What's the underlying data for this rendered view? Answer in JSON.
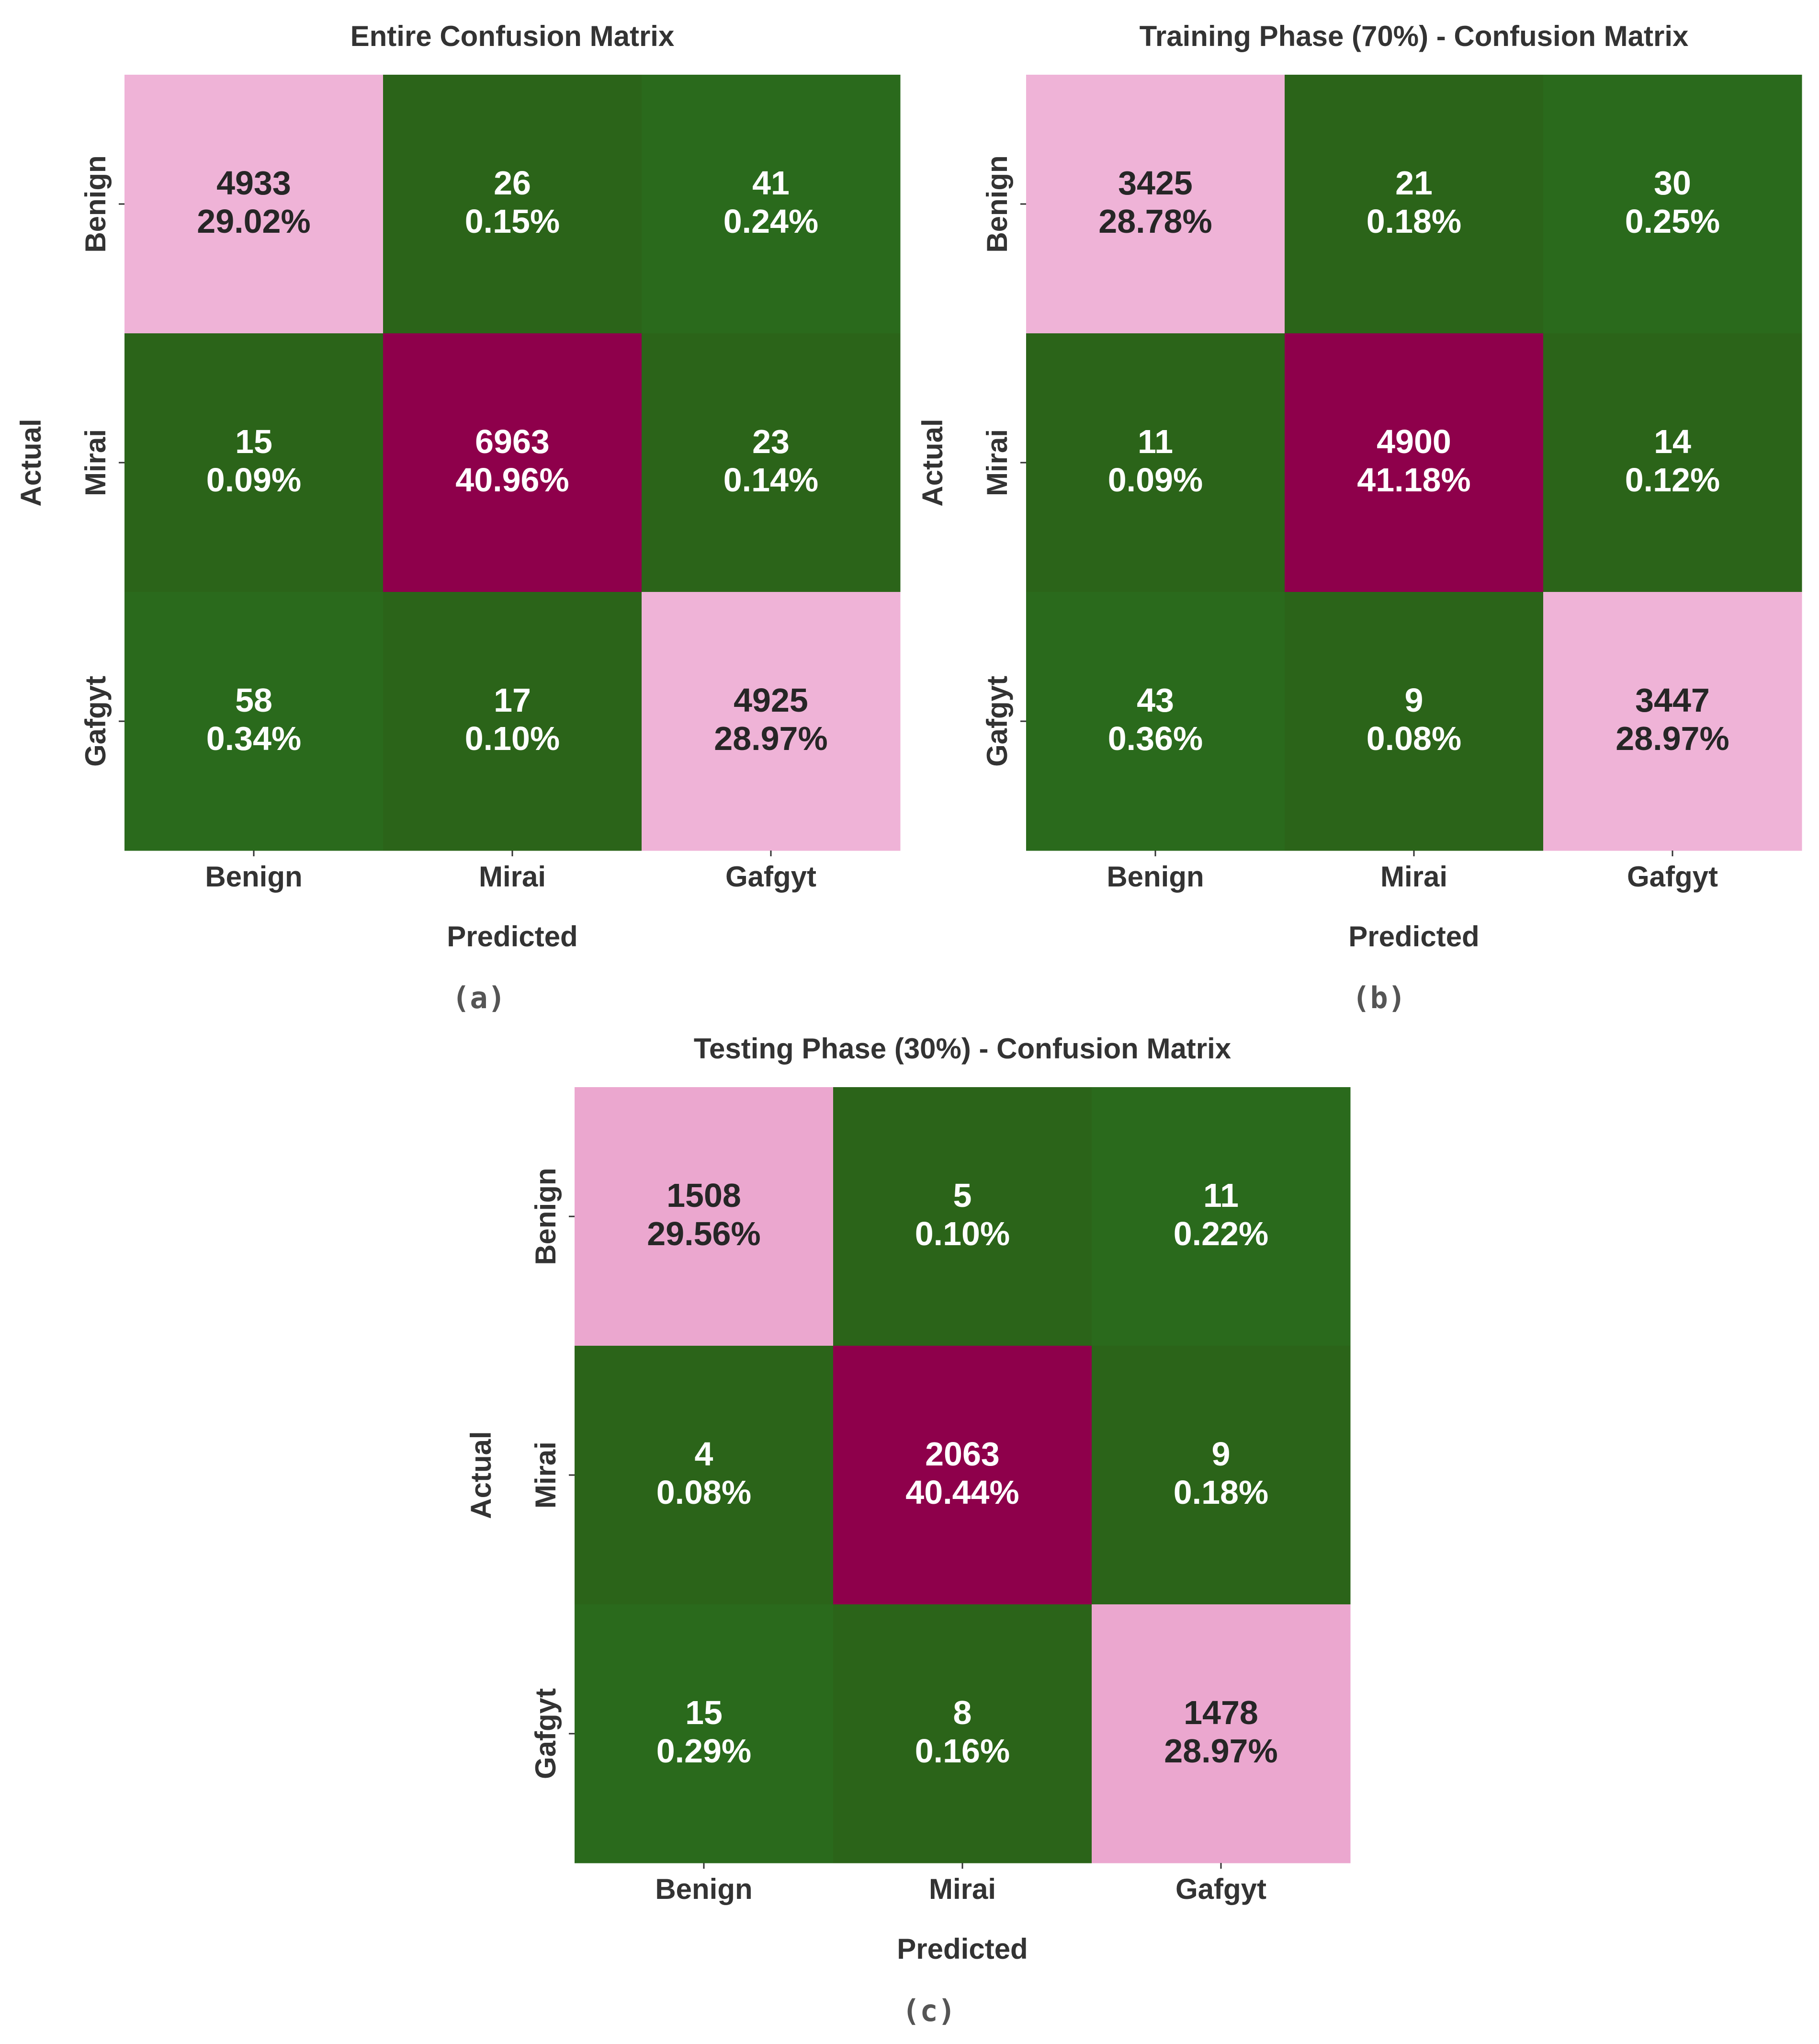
{
  "colors": {
    "green": "#2b6419",
    "green_alt": "#2a6a1c",
    "light_pink": "#efb3d7",
    "light_pink_alt": "#eba7cf",
    "magenta": "#8e004b",
    "text_on_dark": "#ffffff",
    "text_on_light": "#262626"
  },
  "chart_data": [
    {
      "type": "heatmap",
      "title": "Entire Confusion Matrix",
      "xlabel": "Predicted",
      "ylabel": "Actual",
      "x_tick_labels": [
        "Benign",
        "Mirai",
        "Gafgyt"
      ],
      "y_tick_labels": [
        "Benign",
        "Mirai",
        "Gafgyt"
      ],
      "caption": "(a)",
      "counts": [
        [
          4933,
          26,
          41
        ],
        [
          15,
          6963,
          23
        ],
        [
          58,
          17,
          4925
        ]
      ],
      "percents": [
        [
          "29.02%",
          "0.15%",
          "0.24%"
        ],
        [
          "0.09%",
          "40.96%",
          "0.14%"
        ],
        [
          "0.34%",
          "0.10%",
          "28.97%"
        ]
      ],
      "colormap": "PiYG (high = magenta, low = green)"
    },
    {
      "type": "heatmap",
      "title": "Training Phase (70%) - Confusion Matrix",
      "xlabel": "Predicted",
      "ylabel": "Actual",
      "x_tick_labels": [
        "Benign",
        "Mirai",
        "Gafgyt"
      ],
      "y_tick_labels": [
        "Benign",
        "Mirai",
        "Gafgyt"
      ],
      "caption": "(b)",
      "counts": [
        [
          3425,
          21,
          30
        ],
        [
          11,
          4900,
          14
        ],
        [
          43,
          9,
          3447
        ]
      ],
      "percents": [
        [
          "28.78%",
          "0.18%",
          "0.25%"
        ],
        [
          "0.09%",
          "41.18%",
          "0.12%"
        ],
        [
          "0.36%",
          "0.08%",
          "28.97%"
        ]
      ],
      "colormap": "PiYG (high = magenta, low = green)"
    },
    {
      "type": "heatmap",
      "title": "Testing Phase (30%) - Confusion Matrix",
      "xlabel": "Predicted",
      "ylabel": "Actual",
      "x_tick_labels": [
        "Benign",
        "Mirai",
        "Gafgyt"
      ],
      "y_tick_labels": [
        "Benign",
        "Mirai",
        "Gafgyt"
      ],
      "caption": "(c)",
      "counts": [
        [
          1508,
          5,
          11
        ],
        [
          4,
          2063,
          9
        ],
        [
          15,
          8,
          1478
        ]
      ],
      "percents": [
        [
          "29.56%",
          "0.10%",
          "0.22%"
        ],
        [
          "0.08%",
          "40.44%",
          "0.18%"
        ],
        [
          "0.29%",
          "0.16%",
          "28.97%"
        ]
      ],
      "colormap": "PiYG (high = magenta, low = green)"
    }
  ]
}
